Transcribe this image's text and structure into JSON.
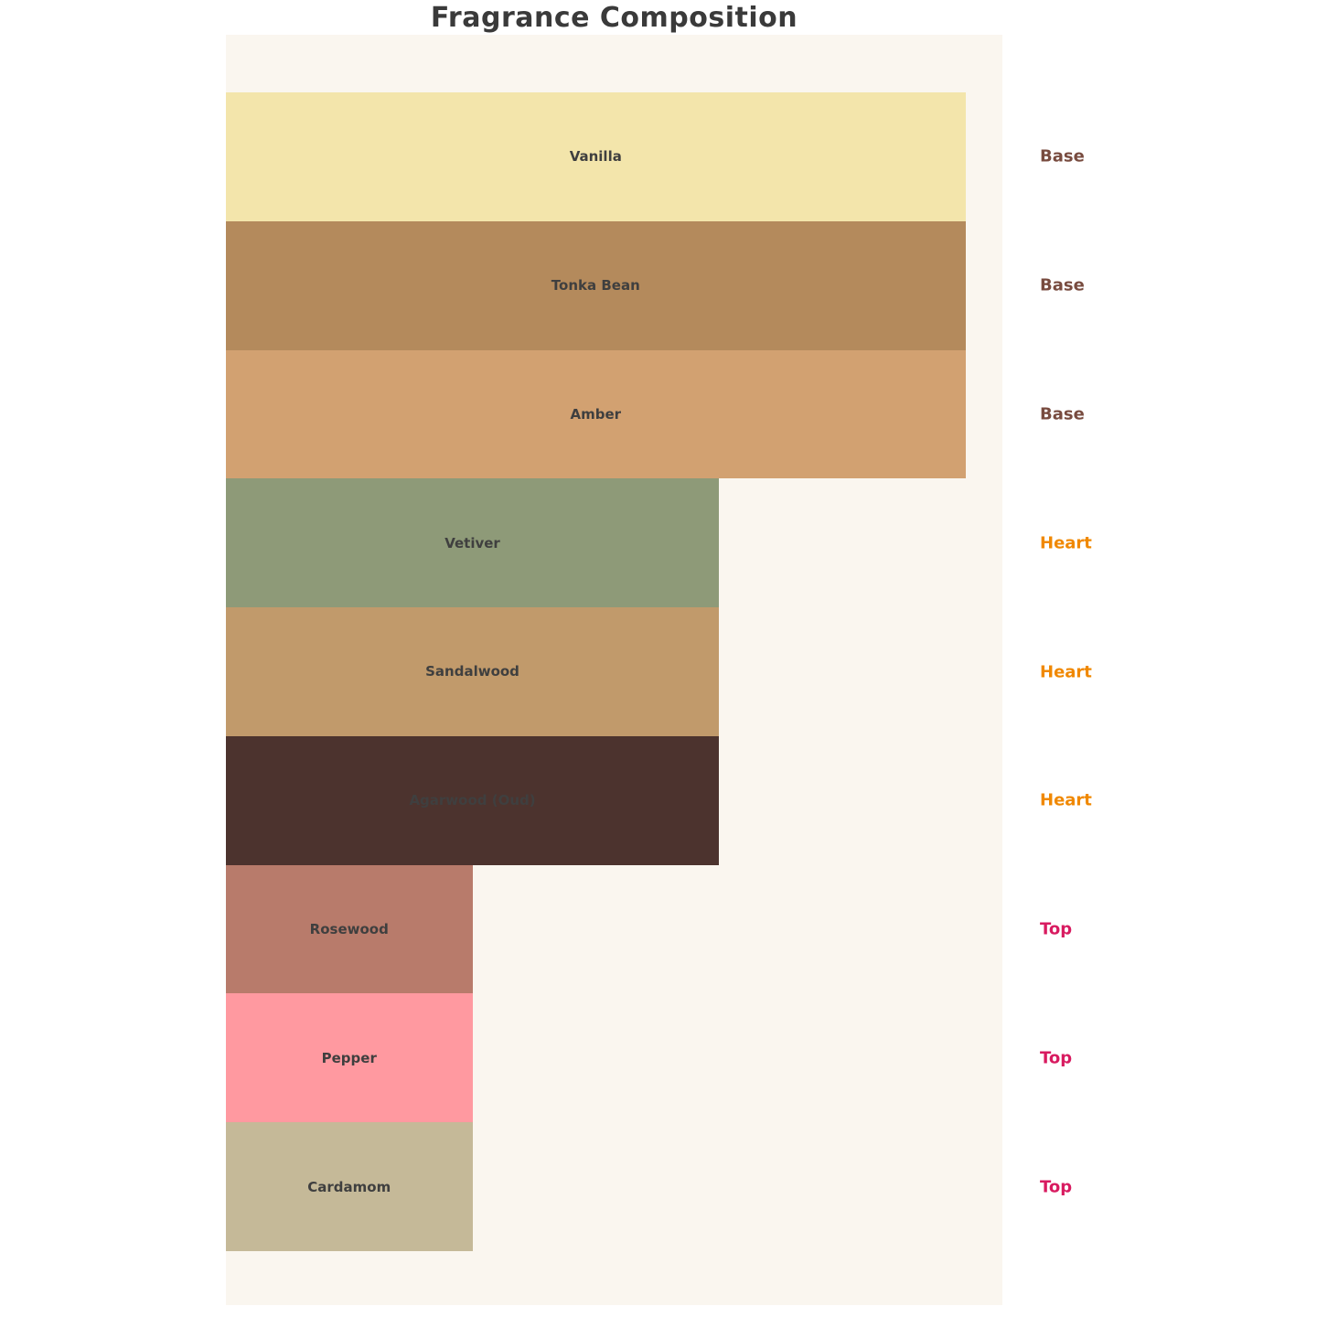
{
  "page": {
    "background": "#ffffff"
  },
  "chart_data": {
    "type": "bar",
    "orientation": "horizontal",
    "title": "Fragrance Composition",
    "title_color": "#3a3a3a",
    "plot_background": "#faf6ef",
    "categories": [
      "Vanilla",
      "Tonka Bean",
      "Amber",
      "Vetiver",
      "Sandalwood",
      "Agarwood (Oud)",
      "Rosewood",
      "Pepper",
      "Cardamom"
    ],
    "values": [
      3,
      3,
      3,
      2,
      2,
      2,
      1,
      1,
      1
    ],
    "xlim": [
      0,
      3.15
    ],
    "bar_colors": [
      "#f3e5ab",
      "#b48a5c",
      "#d2a171",
      "#8e9a78",
      "#c19a6b",
      "#4c332e",
      "#b87b6b",
      "#ff99a0",
      "#c5b998"
    ],
    "bar_label_color": "#3f3f3f",
    "tiers": [
      "Base",
      "Base",
      "Base",
      "Heart",
      "Heart",
      "Heart",
      "Top",
      "Top",
      "Top"
    ],
    "tier_colors": {
      "Base": "#784b3f",
      "Heart": "#f08800",
      "Top": "#d81b60"
    },
    "xlabel": "",
    "ylabel": "",
    "axes_visible": false,
    "grid": false,
    "legend": "none"
  }
}
